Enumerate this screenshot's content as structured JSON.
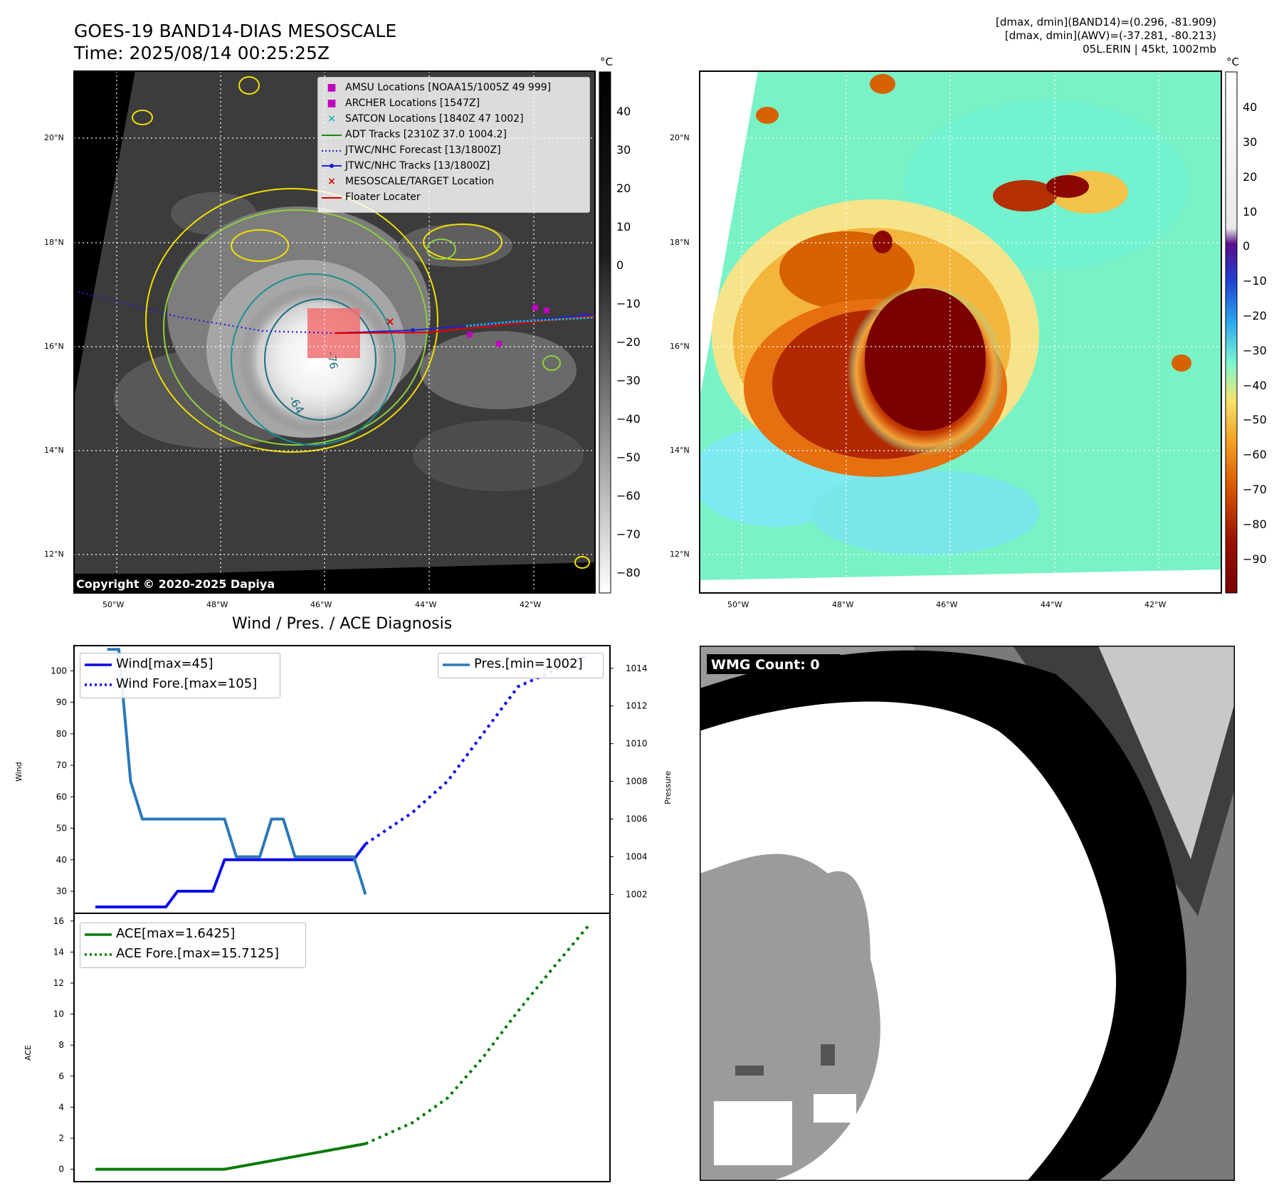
{
  "header": {
    "title_line1": "GOES-19 BAND14-DIAS MESOSCALE",
    "title_line2": "Time: 2025/08/14 00:25:25Z",
    "info_line1": "[dmax, dmin](BAND14)=(0.296, -81.909)",
    "info_line2": "[dmax, dmin](AWV)=(-37.281, -80.213)",
    "info_line3": "05L.ERIN | 45kt, 1002mb"
  },
  "map_axes": {
    "lat_ticks": [
      "20°N",
      "18°N",
      "16°N",
      "14°N",
      "12°N"
    ],
    "lon_ticks": [
      "50°W",
      "48°W",
      "46°W",
      "44°W",
      "42°W"
    ]
  },
  "left_map": {
    "copyright": "Copyright © 2020-2025 Dapiya",
    "contour_labels": [
      "-64",
      "-76"
    ],
    "colorbar": {
      "unit": "°C",
      "ticks": [
        "40",
        "30",
        "20",
        "10",
        "0",
        "−10",
        "−20",
        "−30",
        "−40",
        "−50",
        "−60",
        "−70",
        "−80"
      ]
    },
    "legend": [
      {
        "label": "AMSU Locations [NOAA15/1005Z 49 999]",
        "symbol": "square",
        "color": "#c000c0"
      },
      {
        "label": "ARCHER Locations [1547Z]",
        "symbol": "square",
        "color": "#c000c0"
      },
      {
        "label": "SATCON Locations [1840Z 47 1002]",
        "symbol": "x",
        "color": "#17b8b8"
      },
      {
        "label": "ADT Tracks [2310Z 37.0 1004.2]",
        "symbol": "line",
        "color": "#1a8c1a"
      },
      {
        "label": "JTWC/NHC Forecast [13/1800Z]",
        "symbol": "dotted",
        "color": "#1f1fd6"
      },
      {
        "label": "JTWC/NHC Tracks [13/1800Z]",
        "symbol": "line-dot",
        "color": "#1f1fd6"
      },
      {
        "label": "MESOSCALE/TARGET Location",
        "symbol": "x",
        "color": "#e00000"
      },
      {
        "label": "Floater Locater",
        "symbol": "line",
        "color": "#e00000"
      }
    ]
  },
  "right_map": {
    "colorbar": {
      "unit": "°C",
      "ticks": [
        "40",
        "30",
        "20",
        "10",
        "0",
        "−10",
        "−20",
        "−30",
        "−40",
        "−50",
        "−60",
        "−70",
        "−80",
        "−90"
      ]
    }
  },
  "chart_data": [
    {
      "type": "line",
      "title": "Wind / Pres. / ACE Diagnosis",
      "ylabel": "Wind",
      "ylabel_right": "Pressure",
      "ylim": [
        23,
        108
      ],
      "ylim_right": [
        1001,
        1015.2
      ],
      "yticks": [
        30,
        40,
        50,
        60,
        70,
        80,
        90,
        100
      ],
      "yticks_right": [
        1002,
        1004,
        1006,
        1008,
        1010,
        1012,
        1014
      ],
      "series": [
        {
          "name": "Wind[max=45]",
          "axis": "left",
          "style": "solid",
          "color": "#0a0aee",
          "x": [
            0,
            1,
            2,
            3,
            4,
            5,
            6,
            7,
            8,
            9,
            10,
            11,
            12,
            13,
            14,
            15,
            16,
            17,
            18,
            19,
            20,
            21,
            22,
            23
          ],
          "values": [
            25,
            25,
            25,
            25,
            25,
            25,
            25,
            30,
            30,
            30,
            30,
            40,
            40,
            40,
            40,
            40,
            40,
            40,
            40,
            40,
            40,
            40,
            40,
            45
          ]
        },
        {
          "name": "Wind Fore.[max=105]",
          "axis": "left",
          "style": "dotted",
          "color": "#0a0aee",
          "x": [
            23,
            27,
            30,
            33,
            36,
            39,
            42
          ],
          "values": [
            45,
            55,
            65,
            80,
            95,
            100,
            105
          ]
        },
        {
          "name": "Pres.[min=1002]",
          "axis": "right",
          "style": "solid",
          "color": "#2a78b8",
          "x": [
            1,
            2,
            3,
            4,
            5,
            6,
            7,
            8,
            9,
            10,
            11,
            12,
            13,
            14,
            15,
            16,
            17,
            18,
            19,
            20,
            21,
            22,
            23
          ],
          "values": [
            1015,
            1015,
            1008,
            1006,
            1006,
            1006,
            1006,
            1006,
            1006,
            1006,
            1006,
            1004,
            1004,
            1004,
            1006,
            1006,
            1004,
            1004,
            1004,
            1004,
            1004,
            1004,
            1002
          ]
        }
      ]
    },
    {
      "type": "line",
      "ylabel": "ACE",
      "ylim": [
        -0.8,
        16.5
      ],
      "yticks": [
        0,
        2,
        4,
        6,
        8,
        10,
        12,
        14,
        16
      ],
      "series": [
        {
          "name": "ACE[max=1.6425]",
          "style": "solid",
          "color": "#0a7a0a",
          "x": [
            0,
            11,
            23
          ],
          "values": [
            0,
            0,
            1.6425
          ]
        },
        {
          "name": "ACE Fore.[max=15.7125]",
          "style": "dotted",
          "color": "#0a7a0a",
          "x": [
            23,
            27,
            30,
            33,
            36,
            39,
            42
          ],
          "values": [
            1.6425,
            3.0,
            4.6,
            7.2,
            10.2,
            13.0,
            15.7125
          ]
        }
      ]
    }
  ],
  "wmg": {
    "label": "WMG Count: 0"
  }
}
